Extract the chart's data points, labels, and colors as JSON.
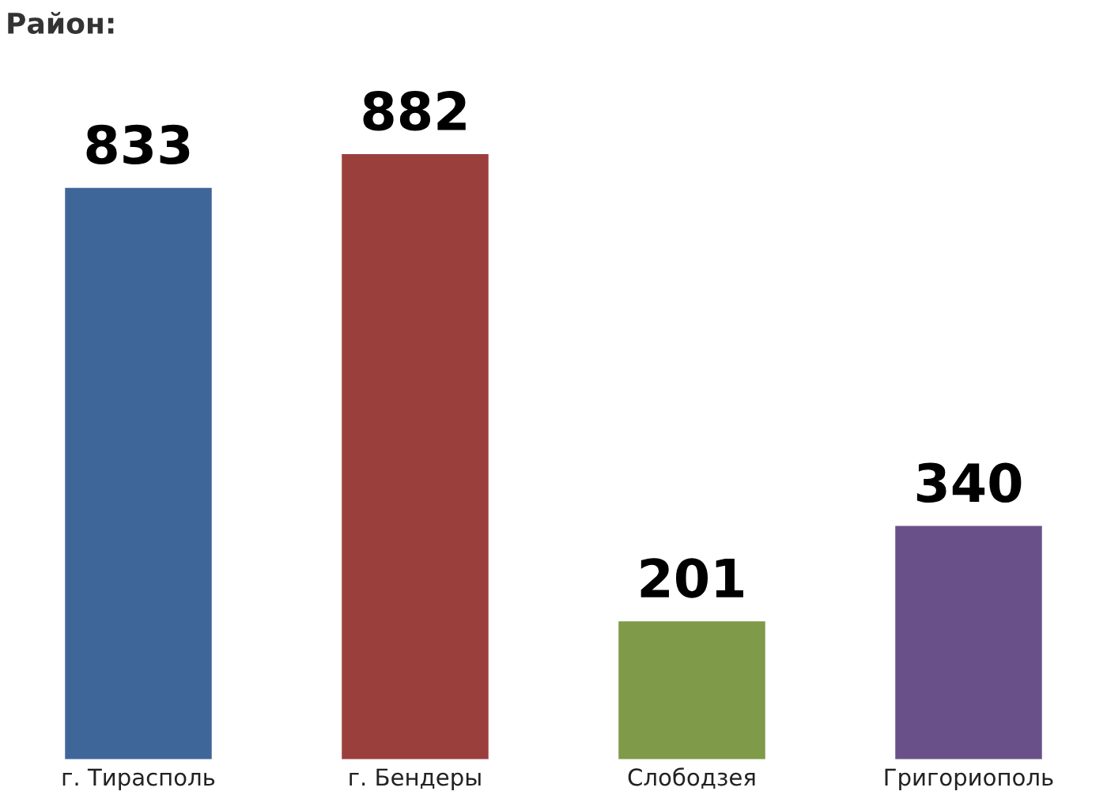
{
  "chart_data": {
    "type": "bar",
    "title": "Район:",
    "categories": [
      "г. Тирасполь",
      "г. Бендеры",
      "Слободзея",
      "Григориополь"
    ],
    "values": [
      833,
      882,
      201,
      340
    ],
    "colors": [
      "#3f6699",
      "#9b3f3d",
      "#7f9a48",
      "#6a5089"
    ],
    "data_labels": true,
    "grid": false,
    "legend": false
  }
}
